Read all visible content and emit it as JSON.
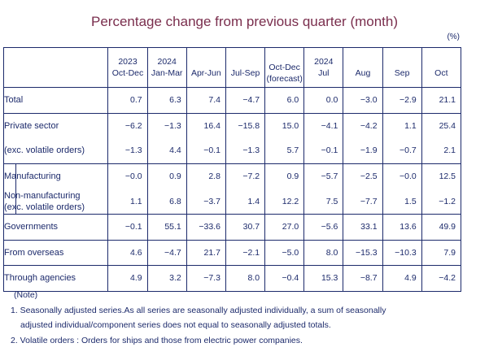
{
  "title": "Percentage change from previous quarter (month)",
  "unit": "(%)",
  "columns": [
    {
      "top": "2023",
      "bottom": "Oct-Dec"
    },
    {
      "top": "2024",
      "bottom": "Jan-Mar"
    },
    {
      "top": "",
      "bottom": "Apr-Jun"
    },
    {
      "top": "",
      "bottom": "Jul-Sep"
    },
    {
      "top": "",
      "bottom": "Oct-Dec",
      "note": "(forecast)"
    },
    {
      "top": "2024",
      "bottom": "Jul"
    },
    {
      "top": "",
      "bottom": "Aug"
    },
    {
      "top": "",
      "bottom": "Sep"
    },
    {
      "top": "",
      "bottom": "Oct"
    }
  ],
  "rows": [
    {
      "label": "Total",
      "values": [
        "0.7",
        "6.3",
        "7.4",
        "−4.7",
        "6.0",
        "0.0",
        "−3.0",
        "−2.9",
        "21.1"
      ]
    },
    {
      "label": "Private sector",
      "values": [
        "−6.2",
        "−1.3",
        "16.4",
        "−15.8",
        "15.0",
        "−4.1",
        "−4.2",
        "1.1",
        "25.4"
      ]
    },
    {
      "label": "(exc. volatile orders)",
      "values": [
        "−1.3",
        "4.4",
        "−0.1",
        "−1.3",
        "5.7",
        "−0.1",
        "−1.9",
        "−0.7",
        "2.1"
      ]
    },
    {
      "label": "Manufacturing",
      "values": [
        "−0.0",
        "0.9",
        "2.8",
        "−7.2",
        "0.9",
        "−5.7",
        "−2.5",
        "−0.0",
        "12.5"
      ]
    },
    {
      "label": "Non-manufacturing",
      "label2": "(exc. volatile orders)",
      "values": [
        "1.1",
        "6.8",
        "−3.7",
        "1.4",
        "12.2",
        "7.5",
        "−7.7",
        "1.5",
        "−1.2"
      ]
    },
    {
      "label": "Governments",
      "values": [
        "−0.1",
        "55.1",
        "−33.6",
        "30.7",
        "27.0",
        "−5.6",
        "33.1",
        "13.6",
        "49.9"
      ]
    },
    {
      "label": "From overseas",
      "values": [
        "4.6",
        "−4.7",
        "21.7",
        "−2.1",
        "−5.0",
        "8.0",
        "−15.3",
        "−10.3",
        "7.9"
      ]
    },
    {
      "label": "Through agencies",
      "values": [
        "4.9",
        "3.2",
        "−7.3",
        "8.0",
        "−0.4",
        "15.3",
        "−8.7",
        "4.9",
        "−4.2"
      ]
    }
  ],
  "notes": {
    "heading": "(Note)",
    "n1a": "1. Seasonally adjusted series.As all series are seasonally adjusted individually,  a sum of seasonally",
    "n1b": "adjusted individual/component series does not equal to seasonally adjusted totals.",
    "n2": "2. Volatile orders : Orders for ships and those from electric power companies."
  }
}
